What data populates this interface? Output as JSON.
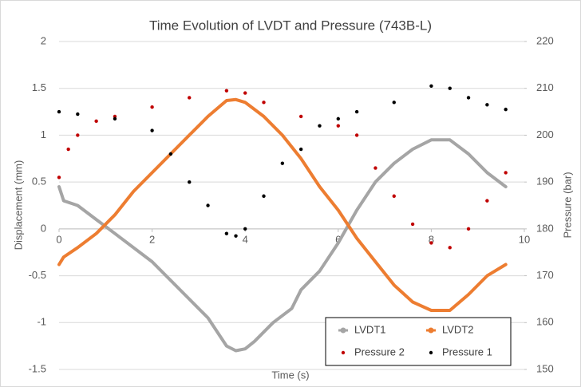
{
  "chart_data": {
    "type": "line",
    "title": "Time Evolution of LVDT and Pressure (743B-L)",
    "xlabel": "Time (s)",
    "ylabel": "Displacement (mm)",
    "y2label": "Pressure (bar)",
    "xlim": [
      0,
      10
    ],
    "xticks": [
      0,
      2,
      4,
      6,
      8,
      10
    ],
    "ylim": [
      -1.5,
      2
    ],
    "yticks": [
      -1.5,
      -1,
      -0.5,
      0,
      0.5,
      1,
      1.5,
      2
    ],
    "y2lim": [
      150,
      220
    ],
    "y2ticks": [
      150,
      160,
      170,
      180,
      190,
      200,
      210,
      220
    ],
    "grid": true,
    "legend": "lower right",
    "series": [
      {
        "name": "LVDT1",
        "color": "#a5a5a5",
        "style": "line",
        "x": [
          0,
          0.1,
          0.4,
          0.8,
          1.2,
          2,
          2.8,
          3.2,
          3.6,
          3.8,
          4.0,
          4.2,
          4.6,
          5.0,
          5.2,
          5.6,
          6.0,
          6.4,
          6.8,
          7.2,
          7.6,
          8.0,
          8.4,
          8.8,
          9.2,
          9.6
        ],
        "values": [
          0.45,
          0.3,
          0.25,
          0.1,
          -0.05,
          -0.35,
          -0.75,
          -0.95,
          -1.25,
          -1.3,
          -1.28,
          -1.2,
          -1.0,
          -0.85,
          -0.65,
          -0.45,
          -0.15,
          0.2,
          0.5,
          0.7,
          0.85,
          0.95,
          0.95,
          0.8,
          0.6,
          0.45
        ]
      },
      {
        "name": "LVDT2",
        "color": "#ed7d31",
        "style": "line",
        "x": [
          0,
          0.1,
          0.4,
          0.8,
          1.2,
          1.6,
          2,
          2.4,
          2.8,
          3.2,
          3.6,
          3.8,
          4.0,
          4.4,
          4.8,
          5.2,
          5.6,
          6.0,
          6.4,
          6.8,
          7.2,
          7.6,
          8.0,
          8.4,
          8.8,
          9.2,
          9.6
        ],
        "values": [
          -0.38,
          -0.3,
          -0.2,
          -0.05,
          0.15,
          0.4,
          0.6,
          0.8,
          1.0,
          1.2,
          1.37,
          1.38,
          1.35,
          1.2,
          1.0,
          0.75,
          0.45,
          0.2,
          -0.1,
          -0.35,
          -0.6,
          -0.78,
          -0.87,
          -0.87,
          -0.7,
          -0.5,
          -0.38
        ]
      },
      {
        "name": "Pressure 2",
        "color": "#c00000",
        "style": "dots",
        "axis": "y2",
        "x": [
          0,
          0.2,
          0.4,
          0.8,
          1.2,
          2,
          2.8,
          3.6,
          4.0,
          4.4,
          5.2,
          6.0,
          6.4,
          6.8,
          7.2,
          7.6,
          8.0,
          8.4,
          8.8,
          9.2,
          9.6
        ],
        "values": [
          191,
          197,
          200,
          203,
          204,
          206,
          208,
          209.5,
          209,
          207,
          204,
          202,
          200,
          193,
          187,
          181,
          177,
          176,
          180,
          186,
          192
        ]
      },
      {
        "name": "Pressure 1",
        "color": "#000000",
        "style": "dots",
        "axis": "y2",
        "x": [
          0,
          0.4,
          1.2,
          2,
          2.4,
          2.8,
          3.2,
          3.6,
          3.8,
          4.0,
          4.4,
          4.8,
          5.2,
          5.6,
          6.0,
          6.4,
          7.2,
          8.0,
          8.4,
          8.8,
          9.2,
          9.6
        ],
        "values": [
          205,
          204.5,
          203.5,
          201,
          196,
          190,
          185,
          179,
          178.5,
          180,
          187,
          194,
          197,
          202,
          203.5,
          205,
          207,
          210.5,
          210,
          208,
          206.5,
          205.5
        ]
      }
    ]
  }
}
